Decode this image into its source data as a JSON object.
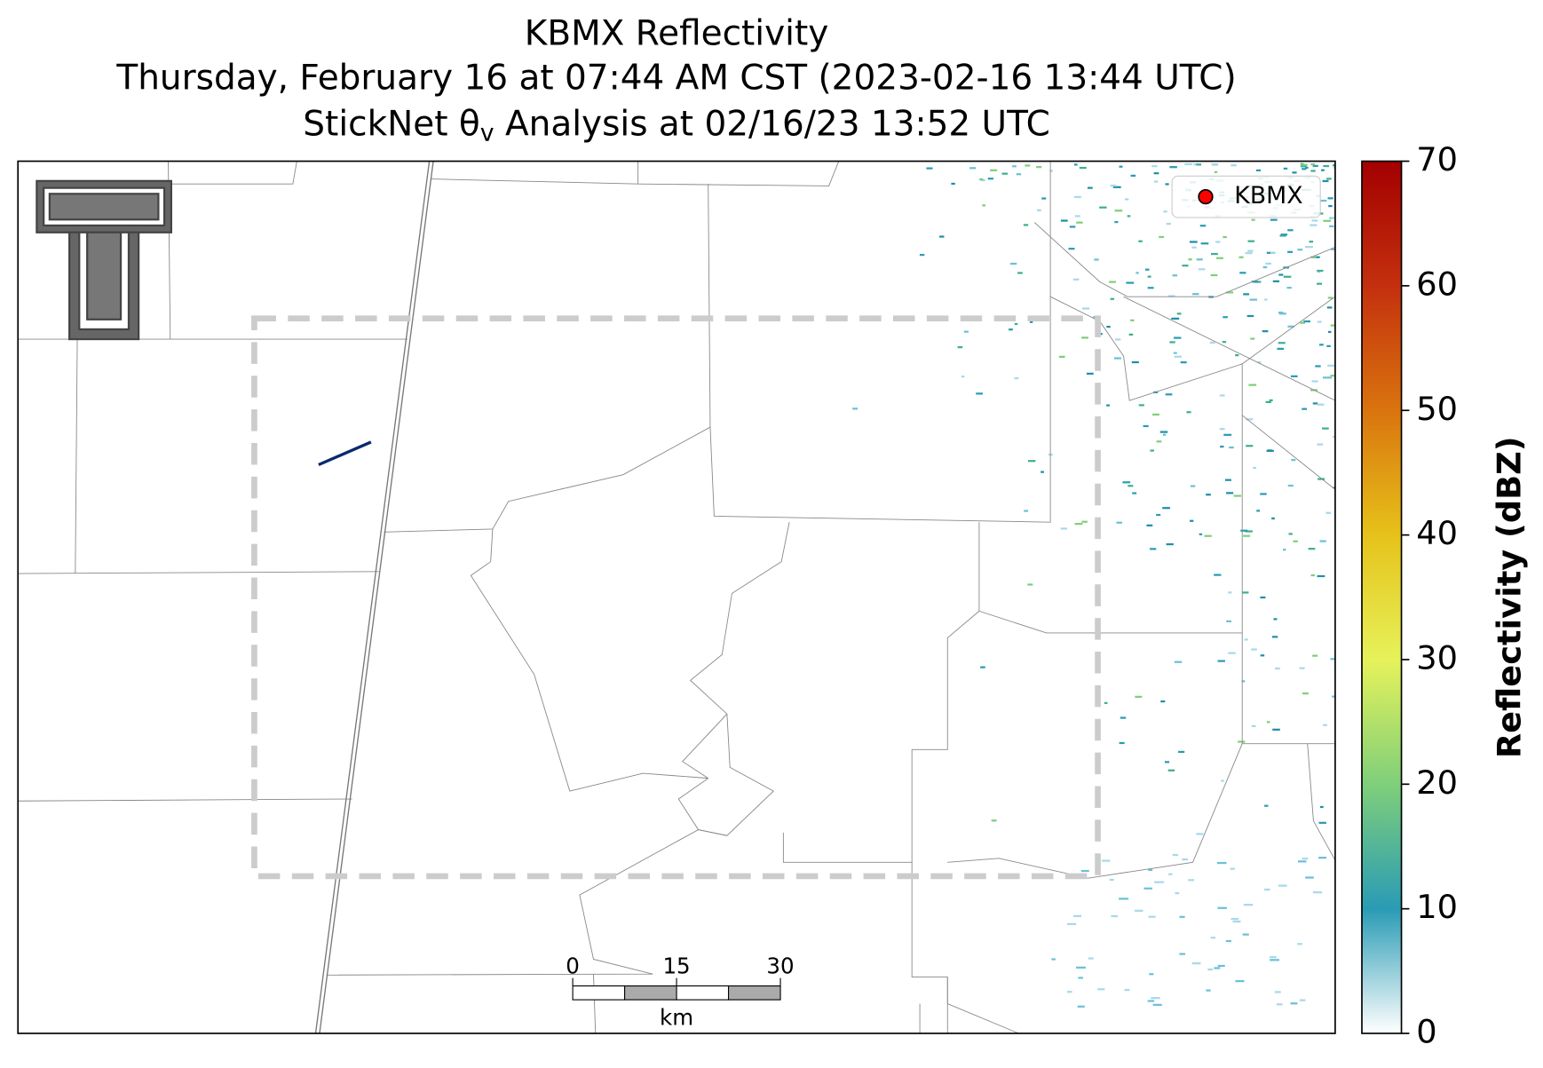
{
  "header": {
    "title": "KBMX Reflectivity",
    "subtitle": "Thursday, February 16 at 07:44 AM CST (2023-02-16 13:44 UTC)",
    "analysis": {
      "prefix": "StickNet θ",
      "sub": "v",
      "suffix": " Analysis at 02/16/23 13:52 UTC"
    }
  },
  "legend": {
    "label": "KBMX",
    "color": "#ff0000"
  },
  "colorbar": {
    "label": "Reflectivity (dBZ)",
    "lim": [
      0,
      70
    ],
    "ticks": [
      0,
      10,
      20,
      30,
      40,
      50,
      60,
      70
    ],
    "colors": [
      "#ffffff",
      "#2a9bb5",
      "#7fcf7a",
      "#e6f25a",
      "#e6c21a",
      "#d9740e",
      "#c4300e",
      "#a30000"
    ]
  },
  "scalebar": {
    "ticks": [
      0,
      15,
      30
    ],
    "unit": "km"
  }
}
